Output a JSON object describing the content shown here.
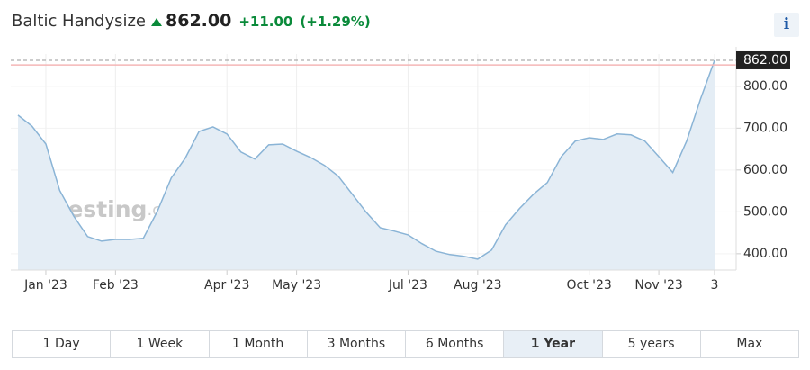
{
  "header": {
    "title": "Baltic Handysize",
    "price": "862.00",
    "change": "+11.00",
    "change_pct": "(+1.29%)",
    "info": "i"
  },
  "chart_data": {
    "type": "area",
    "watermark_brand": "Investing",
    "watermark_suffix": ".com",
    "categories": [
      null,
      null,
      "Jan '23",
      null,
      null,
      null,
      null,
      "Feb '23",
      null,
      null,
      null,
      null,
      null,
      null,
      null,
      "Apr '23",
      null,
      null,
      null,
      null,
      "May '23",
      null,
      null,
      null,
      null,
      null,
      null,
      null,
      "Jul '23",
      null,
      null,
      null,
      null,
      "Aug '23",
      null,
      null,
      null,
      null,
      null,
      null,
      null,
      "Oct '23",
      null,
      null,
      null,
      null,
      "Nov '23",
      null,
      null,
      null,
      "3"
    ],
    "series": [
      {
        "name": "Baltic Handysize",
        "color": "#8ab4d6",
        "fill": "#e4edf5",
        "values": [
          731,
          705,
          662,
          551,
          490,
          441,
          430,
          434,
          434,
          437,
          501,
          581,
          628,
          692,
          703,
          686,
          643,
          626,
          660,
          662,
          645,
          630,
          611,
          585,
          542,
          499,
          462,
          454,
          445,
          424,
          406,
          398,
          394,
          387,
          409,
          469,
          508,
          542,
          570,
          632,
          669,
          677,
          673,
          686,
          684,
          669,
          632,
          594,
          669,
          770,
          862
        ]
      }
    ],
    "previous_close": 851,
    "ylim": [
      361,
      877
    ],
    "yticks": [
      {
        "value": 400,
        "label": "400.00"
      },
      {
        "value": 500,
        "label": "500.00"
      },
      {
        "value": 600,
        "label": "600.00"
      },
      {
        "value": 700,
        "label": "700.00"
      },
      {
        "value": 800,
        "label": "800.00"
      }
    ],
    "grid": true
  },
  "ranges": {
    "items": [
      "1 Day",
      "1 Week",
      "1 Month",
      "3 Months",
      "6 Months",
      "1 Year",
      "5 years",
      "Max"
    ],
    "active": 5
  }
}
